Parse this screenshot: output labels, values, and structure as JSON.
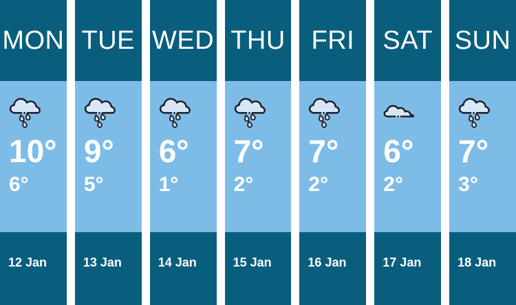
{
  "colors": {
    "header_footer_bg": "#095E7D",
    "body_bg": "#7EBCE8",
    "gutter": "#FFFFFF",
    "text": "#FFFFFF",
    "icon_fill": "#D7E7F7",
    "icon_stroke": "#1C1C26"
  },
  "days": [
    {
      "day": "MON",
      "icon": "rain-cloud",
      "high": "10°",
      "low": "6°",
      "date": "12 Jan"
    },
    {
      "day": "TUE",
      "icon": "rain-cloud",
      "high": "9°",
      "low": "5°",
      "date": "13 Jan"
    },
    {
      "day": "WED",
      "icon": "rain-cloud",
      "high": "6°",
      "low": "1°",
      "date": "14 Jan"
    },
    {
      "day": "THU",
      "icon": "rain-cloud",
      "high": "7°",
      "low": "2°",
      "date": "15 Jan"
    },
    {
      "day": "FRI",
      "icon": "rain-cloud",
      "high": "7°",
      "low": "2°",
      "date": "16 Jan"
    },
    {
      "day": "SAT",
      "icon": "cloud",
      "high": "6°",
      "low": "2°",
      "date": "17 Jan"
    },
    {
      "day": "SUN",
      "icon": "rain-cloud",
      "high": "7°",
      "low": "3°",
      "date": "18 Jan"
    }
  ]
}
